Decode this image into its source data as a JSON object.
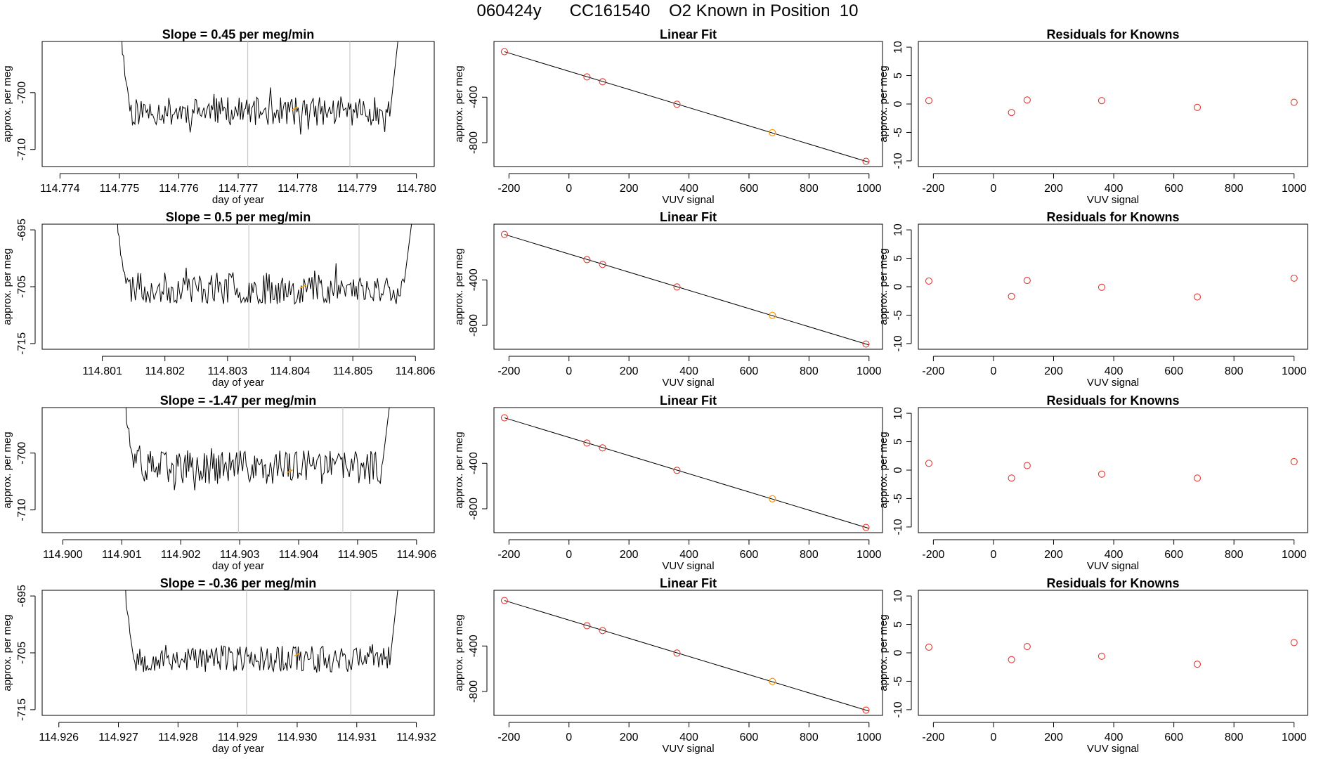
{
  "page_title": "060424y      CC161540    O2 Known in Position  10",
  "colors": {
    "series": "#000000",
    "known": "#ff9900",
    "residual": "#e8352b",
    "vline": "#c8c8c8",
    "axis": "#000000"
  },
  "chart_data": [
    {
      "type": "line",
      "panel": "time",
      "title": "Slope =  0.45  per meg/min",
      "xlabel": "day of year",
      "ylabel": "approx. per meg",
      "xlim": [
        114.7737,
        114.7803
      ],
      "ylim": [
        -713,
        -691
      ],
      "xticks": [
        114.774,
        114.775,
        114.776,
        114.777,
        114.778,
        114.779,
        114.78
      ],
      "xtick_labels": [
        "114.774",
        "114.775",
        "114.776",
        "114.777",
        "114.778",
        "114.779",
        "114.780"
      ],
      "yticks": [
        -700,
        -710
      ],
      "ytick_labels": [
        "-700",
        "-710"
      ],
      "x_start": 114.77505,
      "x_end": 114.7797,
      "base": -703.3,
      "amplitude": 2.5,
      "seed": 11,
      "vlines": [
        114.77716,
        114.77888
      ],
      "known_marker": {
        "x": 114.77795,
        "y": -702.8
      }
    },
    {
      "type": "scatter",
      "panel": "fit",
      "title": "Linear Fit",
      "xlabel": "VUV signal",
      "ylabel": "approx. per meg",
      "xlim": [
        -250,
        1045
      ],
      "ylim": [
        -1010,
        90
      ],
      "xticks": [
        -200,
        0,
        200,
        400,
        600,
        800,
        1000
      ],
      "xtick_labels": [
        "-200",
        "0",
        "200",
        "400",
        "600",
        "800",
        "1000"
      ],
      "yticks": [
        -400,
        -800
      ],
      "ytick_labels": [
        "-400",
        "-800"
      ],
      "fit_line": [
        [
          -215,
          0
        ],
        [
          1000,
          -972
        ]
      ],
      "points": [
        {
          "x": -215,
          "y": 0
        },
        {
          "x": 60,
          "y": -222
        },
        {
          "x": 112,
          "y": -264
        },
        {
          "x": 360,
          "y": -462
        },
        {
          "x": 990,
          "y": -964
        }
      ],
      "known_point": {
        "x": 678,
        "y": -712
      }
    },
    {
      "type": "scatter",
      "panel": "residual",
      "title": "Residuals for Knowns",
      "xlabel": "VUV signal",
      "ylabel": "approx. per meg",
      "xlim": [
        -250,
        1045
      ],
      "ylim": [
        -11,
        11
      ],
      "xticks": [
        -200,
        0,
        200,
        400,
        600,
        800,
        1000
      ],
      "xtick_labels": [
        "-200",
        "0",
        "200",
        "400",
        "600",
        "800",
        "1000"
      ],
      "yticks": [
        10,
        5,
        0,
        -5,
        -10
      ],
      "ytick_labels": [
        "10",
        "5",
        "0",
        "-5",
        "-10"
      ],
      "points": [
        {
          "x": -215,
          "y": 0.6
        },
        {
          "x": 60,
          "y": -1.5
        },
        {
          "x": 112,
          "y": 0.7
        },
        {
          "x": 360,
          "y": 0.6
        },
        {
          "x": 678,
          "y": -0.6
        },
        {
          "x": 1000,
          "y": 0.3
        }
      ]
    },
    {
      "type": "line",
      "panel": "time",
      "title": "Slope =  0.5  per meg/min",
      "xlabel": "day of year",
      "ylabel": "approx. per meg",
      "xlim": [
        114.80004,
        114.8063
      ],
      "ylim": [
        -716,
        -694
      ],
      "xticks": [
        114.801,
        114.802,
        114.803,
        114.804,
        114.805,
        114.806
      ],
      "xtick_labels": [
        "114.801",
        "114.802",
        "114.803",
        "114.804",
        "114.805",
        "114.806"
      ],
      "yticks": [
        -695,
        -705,
        -715
      ],
      "ytick_labels": [
        "-695",
        "-705",
        "-715"
      ],
      "x_start": 114.80125,
      "x_end": 114.80595,
      "base": -705.3,
      "amplitude": 2.8,
      "seed": 23,
      "vlines": [
        114.80334,
        114.8051
      ],
      "known_marker": {
        "x": 114.8042,
        "y": -705.0
      }
    },
    {
      "type": "scatter",
      "panel": "fit",
      "title": "Linear Fit",
      "xlabel": "VUV signal",
      "ylabel": "approx. per meg",
      "xlim": [
        -250,
        1045
      ],
      "ylim": [
        -1010,
        90
      ],
      "xticks": [
        -200,
        0,
        200,
        400,
        600,
        800,
        1000
      ],
      "xtick_labels": [
        "-200",
        "0",
        "200",
        "400",
        "600",
        "800",
        "1000"
      ],
      "yticks": [
        -400,
        -800
      ],
      "ytick_labels": [
        "-400",
        "-800"
      ],
      "fit_line": [
        [
          -215,
          0
        ],
        [
          1000,
          -972
        ]
      ],
      "points": [
        {
          "x": -215,
          "y": 0
        },
        {
          "x": 60,
          "y": -222
        },
        {
          "x": 112,
          "y": -264
        },
        {
          "x": 360,
          "y": -462
        },
        {
          "x": 990,
          "y": -964
        }
      ],
      "known_point": {
        "x": 678,
        "y": -712
      }
    },
    {
      "type": "scatter",
      "panel": "residual",
      "title": "Residuals for Knowns",
      "xlabel": "VUV signal",
      "ylabel": "approx. per meg",
      "xlim": [
        -250,
        1045
      ],
      "ylim": [
        -11,
        11
      ],
      "xticks": [
        -200,
        0,
        200,
        400,
        600,
        800,
        1000
      ],
      "xtick_labels": [
        "-200",
        "0",
        "200",
        "400",
        "600",
        "800",
        "1000"
      ],
      "yticks": [
        10,
        5,
        0,
        -5,
        -10
      ],
      "ytick_labels": [
        "10",
        "5",
        "0",
        "-5",
        "-10"
      ],
      "points": [
        {
          "x": -215,
          "y": 1.0
        },
        {
          "x": 60,
          "y": -1.7
        },
        {
          "x": 112,
          "y": 1.1
        },
        {
          "x": 360,
          "y": -0.1
        },
        {
          "x": 678,
          "y": -1.8
        },
        {
          "x": 1000,
          "y": 1.5
        }
      ]
    },
    {
      "type": "line",
      "panel": "time",
      "title": "Slope =  -1.47  per meg/min",
      "xlabel": "day of year",
      "ylabel": "approx. per meg",
      "xlim": [
        114.89965,
        114.9063
      ],
      "ylim": [
        -714,
        -692
      ],
      "xticks": [
        114.9,
        114.901,
        114.902,
        114.903,
        114.904,
        114.905,
        114.906
      ],
      "xtick_labels": [
        "114.900",
        "114.901",
        "114.902",
        "114.903",
        "114.904",
        "114.905",
        "114.906"
      ],
      "yticks": [
        -700,
        -710
      ],
      "ytick_labels": [
        "-700",
        "-710"
      ],
      "x_start": 114.90108,
      "x_end": 114.90555,
      "base": -702.5,
      "amplitude": 3.0,
      "seed": 37,
      "vlines": [
        114.90298,
        114.90475
      ],
      "known_marker": {
        "x": 114.90385,
        "y": -703.2
      }
    },
    {
      "type": "scatter",
      "panel": "fit",
      "title": "Linear Fit",
      "xlabel": "VUV signal",
      "ylabel": "approx. per meg",
      "xlim": [
        -250,
        1045
      ],
      "ylim": [
        -1010,
        90
      ],
      "xticks": [
        -200,
        0,
        200,
        400,
        600,
        800,
        1000
      ],
      "xtick_labels": [
        "-200",
        "0",
        "200",
        "400",
        "600",
        "800",
        "1000"
      ],
      "yticks": [
        -400,
        -800
      ],
      "ytick_labels": [
        "-400",
        "-800"
      ],
      "fit_line": [
        [
          -215,
          0
        ],
        [
          1000,
          -972
        ]
      ],
      "points": [
        {
          "x": -215,
          "y": 0
        },
        {
          "x": 60,
          "y": -222
        },
        {
          "x": 112,
          "y": -264
        },
        {
          "x": 360,
          "y": -462
        },
        {
          "x": 990,
          "y": -964
        }
      ],
      "known_point": {
        "x": 678,
        "y": -712
      }
    },
    {
      "type": "scatter",
      "panel": "residual",
      "title": "Residuals for Knowns",
      "xlabel": "VUV signal",
      "ylabel": "approx. per meg",
      "xlim": [
        -250,
        1045
      ],
      "ylim": [
        -11,
        11
      ],
      "xticks": [
        -200,
        0,
        200,
        400,
        600,
        800,
        1000
      ],
      "xtick_labels": [
        "-200",
        "0",
        "200",
        "400",
        "600",
        "800",
        "1000"
      ],
      "yticks": [
        10,
        5,
        0,
        -5,
        -10
      ],
      "ytick_labels": [
        "10",
        "5",
        "0",
        "-5",
        "-10"
      ],
      "points": [
        {
          "x": -215,
          "y": 1.2
        },
        {
          "x": 60,
          "y": -1.4
        },
        {
          "x": 112,
          "y": 0.8
        },
        {
          "x": 360,
          "y": -0.7
        },
        {
          "x": 678,
          "y": -1.4
        },
        {
          "x": 1000,
          "y": 1.5
        }
      ]
    },
    {
      "type": "line",
      "panel": "time",
      "title": "Slope =  -0.36  per meg/min",
      "xlabel": "day of year",
      "ylabel": "approx. per meg",
      "xlim": [
        114.92572,
        114.9323
      ],
      "ylim": [
        -716,
        -694
      ],
      "xticks": [
        114.926,
        114.927,
        114.928,
        114.929,
        114.93,
        114.931,
        114.932
      ],
      "xtick_labels": [
        "114.926",
        "114.927",
        "114.928",
        "114.929",
        "114.930",
        "114.931",
        "114.932"
      ],
      "yticks": [
        -695,
        -705,
        -715
      ],
      "ytick_labels": [
        "-695",
        "-705",
        "-715"
      ],
      "x_start": 114.92713,
      "x_end": 114.9317,
      "base": -706.0,
      "amplitude": 2.4,
      "seed": 53,
      "vlines": [
        114.92915,
        114.9309
      ],
      "known_marker": {
        "x": 114.93,
        "y": -705.3
      }
    },
    {
      "type": "scatter",
      "panel": "fit",
      "title": "Linear Fit",
      "xlabel": "VUV signal",
      "ylabel": "approx. per meg",
      "xlim": [
        -250,
        1045
      ],
      "ylim": [
        -1010,
        90
      ],
      "xticks": [
        -200,
        0,
        200,
        400,
        600,
        800,
        1000
      ],
      "xtick_labels": [
        "-200",
        "0",
        "200",
        "400",
        "600",
        "800",
        "1000"
      ],
      "yticks": [
        -400,
        -800
      ],
      "ytick_labels": [
        "-400",
        "-800"
      ],
      "fit_line": [
        [
          -215,
          0
        ],
        [
          1000,
          -972
        ]
      ],
      "points": [
        {
          "x": -215,
          "y": 0
        },
        {
          "x": 60,
          "y": -222
        },
        {
          "x": 112,
          "y": -264
        },
        {
          "x": 360,
          "y": -462
        },
        {
          "x": 990,
          "y": -964
        }
      ],
      "known_point": {
        "x": 678,
        "y": -712
      }
    },
    {
      "type": "scatter",
      "panel": "residual",
      "title": "Residuals for Knowns",
      "xlabel": "VUV signal",
      "ylabel": "approx. per meg",
      "xlim": [
        -250,
        1045
      ],
      "ylim": [
        -11,
        11
      ],
      "xticks": [
        -200,
        0,
        200,
        400,
        600,
        800,
        1000
      ],
      "xtick_labels": [
        "-200",
        "0",
        "200",
        "400",
        "600",
        "800",
        "1000"
      ],
      "yticks": [
        10,
        5,
        0,
        -5,
        -10
      ],
      "ytick_labels": [
        "10",
        "5",
        "0",
        "-5",
        "-10"
      ],
      "points": [
        {
          "x": -215,
          "y": 1.0
        },
        {
          "x": 60,
          "y": -1.2
        },
        {
          "x": 112,
          "y": 1.1
        },
        {
          "x": 360,
          "y": -0.6
        },
        {
          "x": 678,
          "y": -2.0
        },
        {
          "x": 1000,
          "y": 1.8
        }
      ]
    }
  ]
}
